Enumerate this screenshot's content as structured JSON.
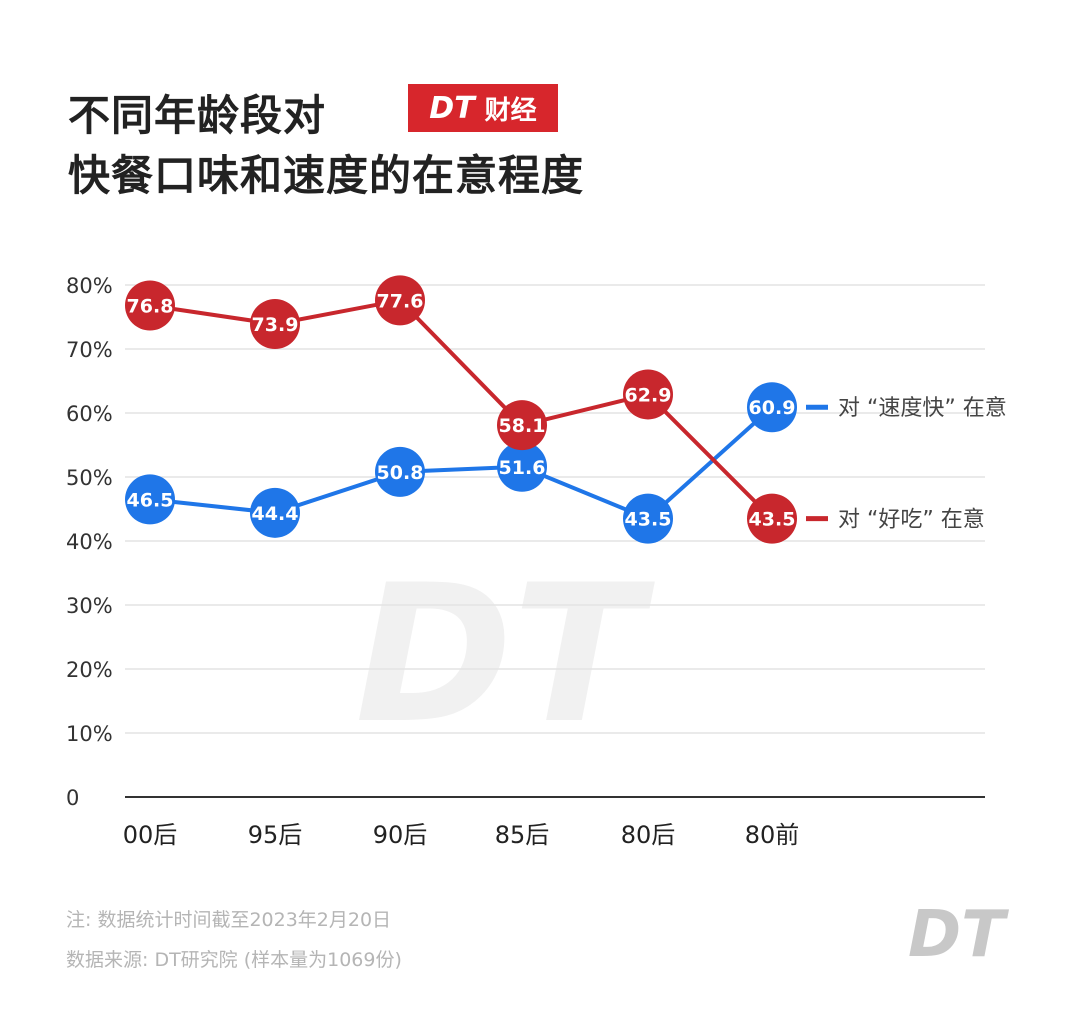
{
  "title_line1": "不同年龄段对",
  "title_line2": "快餐口味和速度的在意程度",
  "brand": {
    "logo": "DT",
    "label": "财经",
    "color": "#d7262c"
  },
  "watermark": "DT",
  "footer": {
    "note": "注: 数据统计时间截至2023年2月20日",
    "source": "数据来源: DT研究院 (样本量为1069份)",
    "logo": "DT"
  },
  "chart_data": {
    "type": "line",
    "categories": [
      "00后",
      "95后",
      "90后",
      "85后",
      "80后",
      "80前"
    ],
    "ylim": [
      0,
      80
    ],
    "yticks": [
      "0",
      "10%",
      "20%",
      "30%",
      "40%",
      "50%",
      "60%",
      "70%",
      "80%"
    ],
    "grid": true,
    "legend": "right-inline",
    "series": [
      {
        "name": "对 “速度快” 在意",
        "color": "#1f76e8",
        "values": [
          46.5,
          44.4,
          50.8,
          51.6,
          43.5,
          60.9
        ]
      },
      {
        "name": "对 “好吃” 在意",
        "color": "#c8272d",
        "values": [
          76.8,
          73.9,
          77.6,
          58.1,
          62.9,
          43.5
        ]
      }
    ]
  }
}
